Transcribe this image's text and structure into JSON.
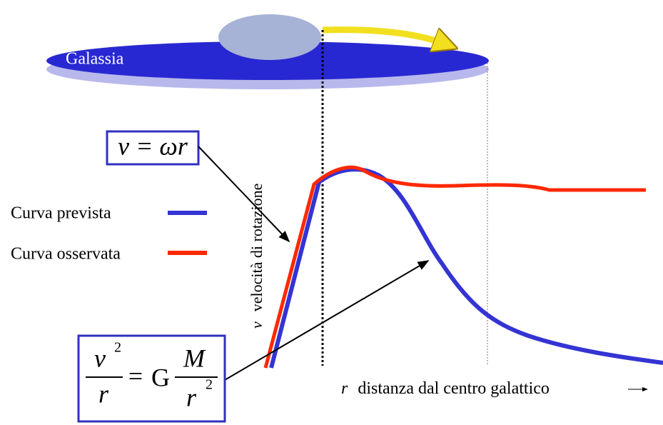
{
  "galaxy_label": "Galassia",
  "formula_linear": "v = ωr",
  "formula_gravity": {
    "lhs_num": "v",
    "lhs_exp": "2",
    "lhs_den": "r",
    "equals": "=",
    "constant": "G",
    "rhs_num": "M",
    "rhs_den": "r",
    "rhs_exp": "2"
  },
  "y_axis": {
    "symbol": "v",
    "label": "velocità di rotazione"
  },
  "x_axis": {
    "symbol": "r",
    "label": "distanza dal centro galattico"
  },
  "legend": [
    {
      "label": "Curva prevista"
    },
    {
      "label": "Curva osservata"
    }
  ]
}
